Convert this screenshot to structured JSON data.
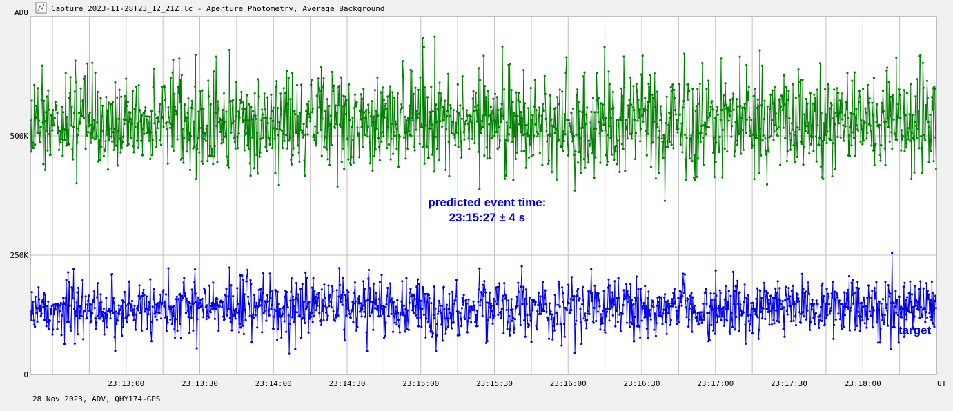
{
  "window": {
    "title": "Capture 2023-11-28T23_12_21Z.lc - Aperture Photometry, Average Background",
    "icon": "chart-app-icon"
  },
  "footer": {
    "caption": "28 Nov 2023, ADV, QHY174-GPS"
  },
  "chart_data": {
    "type": "line",
    "ylabel": "ADU",
    "xlabel": "UT",
    "ylim": [
      0,
      750000
    ],
    "xlim": [
      "23:12:21",
      "23:18:30"
    ],
    "y_ticks": [
      {
        "value": 0,
        "label": "0"
      },
      {
        "value": 250000,
        "label": "250K"
      },
      {
        "value": 500000,
        "label": "500K"
      }
    ],
    "x_ticks": [
      {
        "value": "23:13:00",
        "label": "23:13:00"
      },
      {
        "value": "23:13:30",
        "label": "23:13:30"
      },
      {
        "value": "23:14:00",
        "label": "23:14:00"
      },
      {
        "value": "23:14:30",
        "label": "23:14:30"
      },
      {
        "value": "23:15:00",
        "label": "23:15:00"
      },
      {
        "value": "23:15:30",
        "label": "23:15:30"
      },
      {
        "value": "23:16:00",
        "label": "23:16:00"
      },
      {
        "value": "23:16:30",
        "label": "23:16:30"
      },
      {
        "value": "23:17:00",
        "label": "23:17:00"
      },
      {
        "value": "23:17:30",
        "label": "23:17:30"
      },
      {
        "value": "23:18:00",
        "label": "23:18:00"
      }
    ],
    "grid": true,
    "series": [
      {
        "name": "",
        "color": "#008000",
        "mean": 530000,
        "noise_sd": 55000,
        "min": 325000,
        "max": 740000,
        "points_drawn": 1500
      },
      {
        "name": "target",
        "color": "#0000ee",
        "mean": 140000,
        "noise_sd": 30000,
        "min": 10000,
        "max": 265000,
        "points_drawn": 1500
      }
    ],
    "annotations": [
      {
        "text_line1": "predicted event time:",
        "text_line2": "23:15:27 ± 4 s",
        "at_time": "23:15:27",
        "at_value": 335000,
        "color": "#0000ee"
      },
      {
        "text": "target",
        "color": "#0000ee",
        "at_time": "23:18:15",
        "at_value": 95000
      }
    ]
  }
}
